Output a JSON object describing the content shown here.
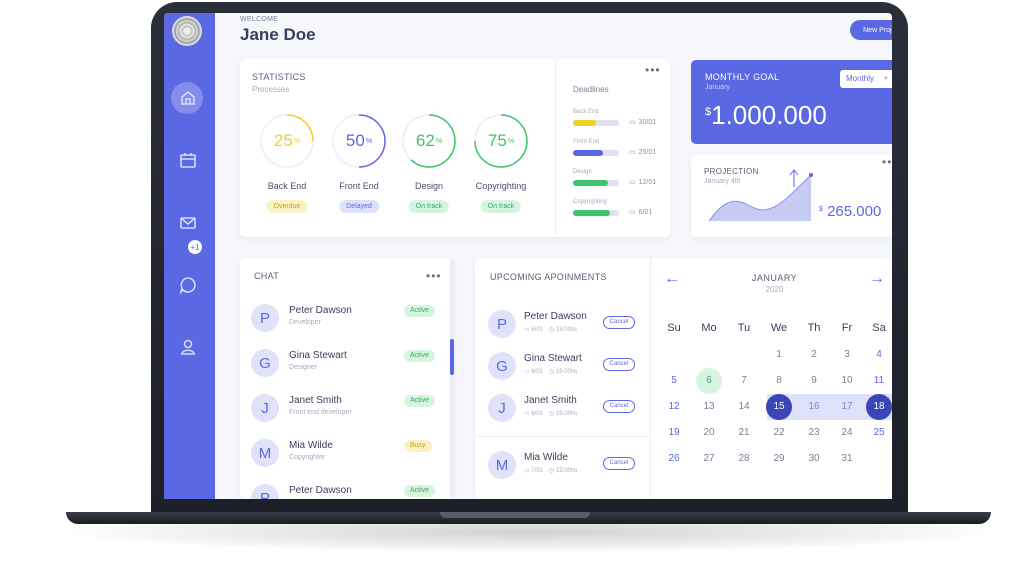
{
  "header": {
    "welcome": "WELCOME",
    "user_name": "Jane Doe",
    "new_project_label": "New Project"
  },
  "sidebar": {
    "badge": "+1",
    "icons": [
      "home-icon",
      "calendar-icon",
      "mail-icon",
      "chat-bubble-icon",
      "user-icon"
    ]
  },
  "statistics": {
    "title": "STATISTICS",
    "subtitle": "Processes",
    "items": [
      {
        "value": "25",
        "unit": "%",
        "label": "Back End",
        "status": "Overdue",
        "color": "#f2cf23",
        "percent": 25
      },
      {
        "value": "50",
        "unit": "%",
        "label": "Front End",
        "status": "Delayed",
        "color": "#5b68e3",
        "percent": 50
      },
      {
        "value": "62",
        "unit": "%",
        "label": "Design",
        "status": "On track",
        "color": "#3ec46d",
        "percent": 62
      },
      {
        "value": "75",
        "unit": "%",
        "label": "Copyrighting",
        "status": "On track",
        "color": "#3ec46d",
        "percent": 75
      }
    ]
  },
  "deadlines": {
    "title": "Deadlines",
    "items": [
      {
        "name": "Back End",
        "date": "30/01",
        "progress": 0.5,
        "color": "#f2cf23"
      },
      {
        "name": "Front End",
        "date": "25/01",
        "progress": 0.65,
        "color": "#5b68e3"
      },
      {
        "name": "Design",
        "date": "12/01",
        "progress": 0.75,
        "color": "#3ec46d"
      },
      {
        "name": "Copyrighting",
        "date": "6/01",
        "progress": 0.8,
        "color": "#3ec46d"
      }
    ]
  },
  "monthly_goal": {
    "title": "MONTHLY GOAL",
    "subtitle": "January",
    "currency": "$",
    "amount": "1.000.000",
    "select_value": "Monthly"
  },
  "projection": {
    "title": "PROJECTION",
    "subtitle": "January 4th",
    "currency": "$",
    "amount": "265.000"
  },
  "chat": {
    "title": "CHAT",
    "items": [
      {
        "initial": "P",
        "name": "Peter Dawson",
        "role": "Developer",
        "status": "Active"
      },
      {
        "initial": "G",
        "name": "Gina Stewart",
        "role": "Designer",
        "status": "Active"
      },
      {
        "initial": "J",
        "name": "Janet Smith",
        "role": "Front end developer",
        "status": "Active"
      },
      {
        "initial": "M",
        "name": "Mia Wilde",
        "role": "Copyrighter",
        "status": "Busy"
      },
      {
        "initial": "P",
        "name": "Peter Dawson",
        "role": "",
        "status": "Active"
      }
    ]
  },
  "appointments": {
    "title": "UPCOMING APOINMENTS",
    "cancel_label": "Cancel",
    "items": [
      {
        "initial": "P",
        "name": "Peter Dawson",
        "date": "6/01",
        "time": "15:00hs"
      },
      {
        "initial": "G",
        "name": "Gina Stewart",
        "date": "6/01",
        "time": "15:00hs"
      },
      {
        "initial": "J",
        "name": "Janet Smith",
        "date": "6/01",
        "time": "15:00hs"
      },
      {
        "initial": "M",
        "name": "Mia Wilde",
        "date": "7/01",
        "time": "15:00hs"
      }
    ]
  },
  "calendar": {
    "month": "JANUARY",
    "year": "2020",
    "prev_arrow": "←",
    "next_arrow": "→",
    "weekdays": [
      "Su",
      "Mo",
      "Tu",
      "We",
      "Th",
      "Fr",
      "Sa"
    ],
    "weeks": [
      [
        "",
        "",
        "",
        "1",
        "2",
        "3",
        "4"
      ],
      [
        "5",
        "6",
        "7",
        "8",
        "9",
        "10",
        "11"
      ],
      [
        "12",
        "13",
        "14",
        "15",
        "16",
        "17",
        "18"
      ],
      [
        "19",
        "20",
        "21",
        "22",
        "23",
        "24",
        "25"
      ],
      [
        "26",
        "27",
        "28",
        "29",
        "30",
        "31",
        ""
      ]
    ],
    "today": "6",
    "range_start": "15",
    "range_end": "18"
  }
}
